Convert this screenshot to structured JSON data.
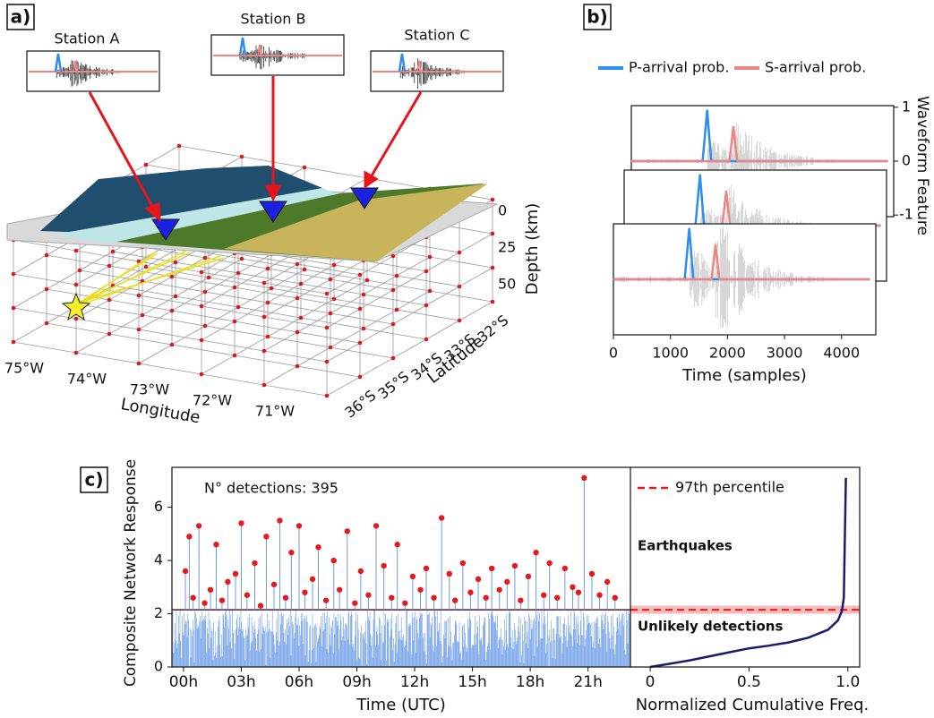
{
  "panels": [
    "a)",
    "b)",
    "c)"
  ],
  "map": {
    "stations": [
      "Station A",
      "Station B",
      "Station C"
    ],
    "x_label": "Longitude",
    "y_label": "Latitude",
    "z_label": "Depth (km)",
    "longitude_ticks": [
      "75°W",
      "74°W",
      "73°W",
      "72°W",
      "71°W"
    ],
    "latitude_ticks": [
      "36°S",
      "35°S",
      "34°S",
      "33°S",
      "32°S"
    ],
    "depth_ticks": [
      0,
      25,
      50
    ]
  },
  "chart_data": [
    {
      "type": "line",
      "x_label": "Time (samples)",
      "y2_label": "Waveform Feature",
      "xlim": [
        0,
        4600
      ],
      "xticks": [
        0,
        1000,
        2000,
        3000,
        4000
      ],
      "y2lim": [
        -1.03,
        1.03
      ],
      "y2ticks": [
        1,
        0,
        -1
      ],
      "legend": "top",
      "series": [
        {
          "name": "P-arrival prob.",
          "color": "#2b8ef0",
          "axis": "y2",
          "x": [
            0,
            1250,
            1330,
            1400,
            4500
          ],
          "values": [
            0,
            0,
            0.95,
            0,
            0
          ]
        },
        {
          "name": "S-arrival prob.",
          "color": "#ec8583",
          "axis": "y2",
          "x": [
            0,
            1720,
            1790,
            1860,
            4500
          ],
          "values": [
            0,
            0,
            0.65,
            0,
            0
          ]
        }
      ]
    },
    {
      "type": "stem",
      "annotation": "N° detections: 395",
      "y_label": "Composite Network Response",
      "x_label": "Time (UTC)",
      "xlim": [
        -0.6,
        23.2
      ],
      "xticks": [
        {
          "value": 0,
          "label": "00h"
        },
        {
          "value": 3,
          "label": "03h"
        },
        {
          "value": 6,
          "label": "06h"
        },
        {
          "value": 9,
          "label": "09h"
        },
        {
          "value": 12,
          "label": "12h"
        },
        {
          "value": 15,
          "label": "15h"
        },
        {
          "value": 18,
          "label": "18h"
        },
        {
          "value": 21,
          "label": "21h"
        }
      ],
      "ylim": [
        0,
        7.5
      ],
      "yticks": [
        0,
        2,
        4,
        6
      ],
      "color": "#e41a1c",
      "stem_color": "#6a9be8",
      "x": [
        0.1,
        0.3,
        0.5,
        0.8,
        1.1,
        1.4,
        1.7,
        2.0,
        2.3,
        2.7,
        3.0,
        3.3,
        3.7,
        4.0,
        4.3,
        4.7,
        5.0,
        5.3,
        5.6,
        6.0,
        6.3,
        6.7,
        7.0,
        7.4,
        7.8,
        8.1,
        8.5,
        8.9,
        9.2,
        9.6,
        10.0,
        10.4,
        10.8,
        11.1,
        11.5,
        11.9,
        12.3,
        12.6,
        13.0,
        13.4,
        13.8,
        14.1,
        14.5,
        14.9,
        15.3,
        15.7,
        16.0,
        16.4,
        16.8,
        17.2,
        17.5,
        17.9,
        18.3,
        18.7,
        19.0,
        19.4,
        19.8,
        20.2,
        20.5,
        20.8,
        21.2,
        21.6,
        22.0,
        22.4
      ],
      "values": [
        3.6,
        4.9,
        2.6,
        5.3,
        2.4,
        2.9,
        4.6,
        2.5,
        3.2,
        3.5,
        5.4,
        2.7,
        3.9,
        2.3,
        4.9,
        3.1,
        5.5,
        2.6,
        4.3,
        5.3,
        2.8,
        3.3,
        4.5,
        2.5,
        4.0,
        2.9,
        5.1,
        2.4,
        3.6,
        2.7,
        5.3,
        3.8,
        2.6,
        4.6,
        2.4,
        3.4,
        2.9,
        3.7,
        2.6,
        5.6,
        3.5,
        2.5,
        3.9,
        2.8,
        3.3,
        2.6,
        3.7,
        2.9,
        3.2,
        3.8,
        2.5,
        3.4,
        4.3,
        2.7,
        3.9,
        2.6,
        3.7,
        3.0,
        2.8,
        7.1,
        3.5,
        2.7,
        3.2,
        2.6
      ]
    },
    {
      "type": "line",
      "x_label": "Normalized Cumulative Freq.",
      "xlim": [
        -0.1,
        1.06
      ],
      "xticks": [
        0,
        0.5,
        {
          "value": 1,
          "label": "1.0"
        }
      ],
      "ylim": [
        0,
        7.5
      ],
      "color": "#1a1a6e",
      "x": [
        0,
        0.1,
        0.2,
        0.3,
        0.4,
        0.5,
        0.6,
        0.7,
        0.8,
        0.9,
        0.95,
        0.97,
        0.98,
        0.99
      ],
      "values": [
        0,
        0.12,
        0.25,
        0.4,
        0.55,
        0.7,
        0.8,
        0.92,
        1.1,
        1.4,
        1.75,
        2.1,
        2.6,
        7.1
      ],
      "reference_line": {
        "name": "97th percentile",
        "value": 2.15,
        "band": [
          2.0,
          2.3
        ],
        "color": "#e41a1c"
      },
      "annotations": [
        "Earthquakes",
        "Unlikely detections"
      ]
    }
  ]
}
